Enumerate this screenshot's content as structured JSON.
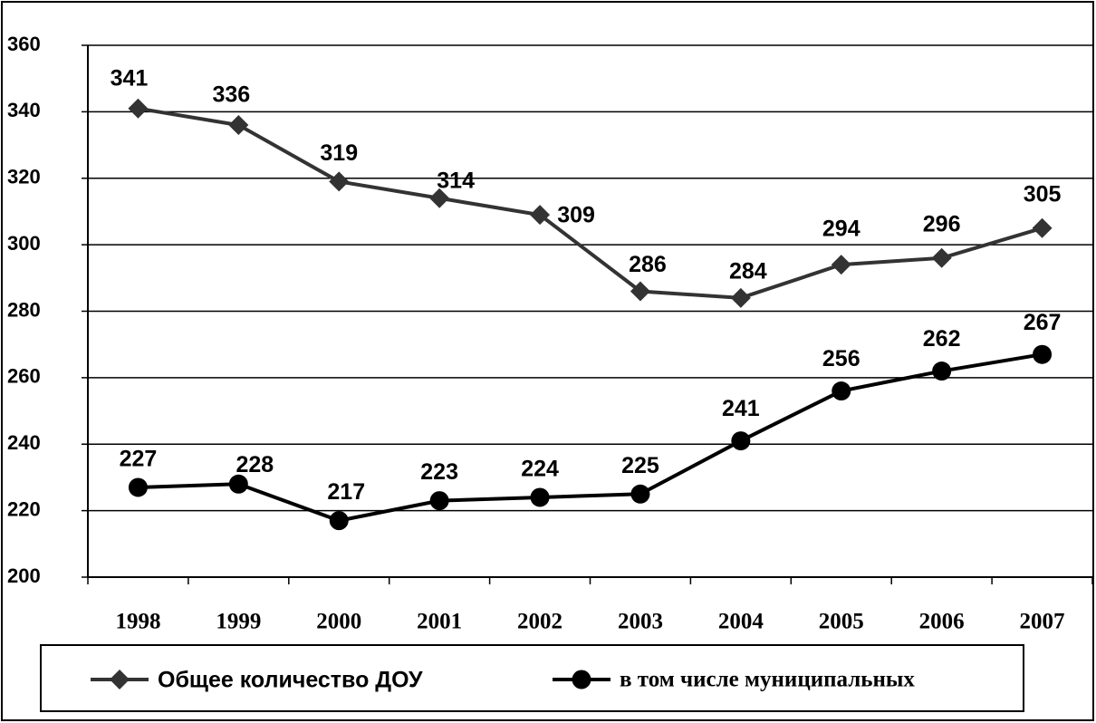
{
  "chart_data": {
    "type": "line",
    "categories": [
      "1998",
      "1999",
      "2000",
      "2001",
      "2002",
      "2003",
      "2004",
      "2005",
      "2006",
      "2007"
    ],
    "series": [
      {
        "name": "Общее количество ДОУ",
        "color": "#333333",
        "marker": "diamond",
        "values": [
          341,
          336,
          319,
          314,
          309,
          286,
          284,
          294,
          296,
          305
        ]
      },
      {
        "name": "в том числе муниципальных",
        "color": "#000000",
        "marker": "circle",
        "values": [
          227,
          228,
          217,
          223,
          224,
          225,
          241,
          256,
          262,
          267
        ]
      }
    ],
    "ylim": [
      200,
      360
    ],
    "yticks": [
      200,
      220,
      240,
      260,
      280,
      300,
      320,
      340,
      360
    ],
    "grid": true,
    "legend": "bottom"
  }
}
